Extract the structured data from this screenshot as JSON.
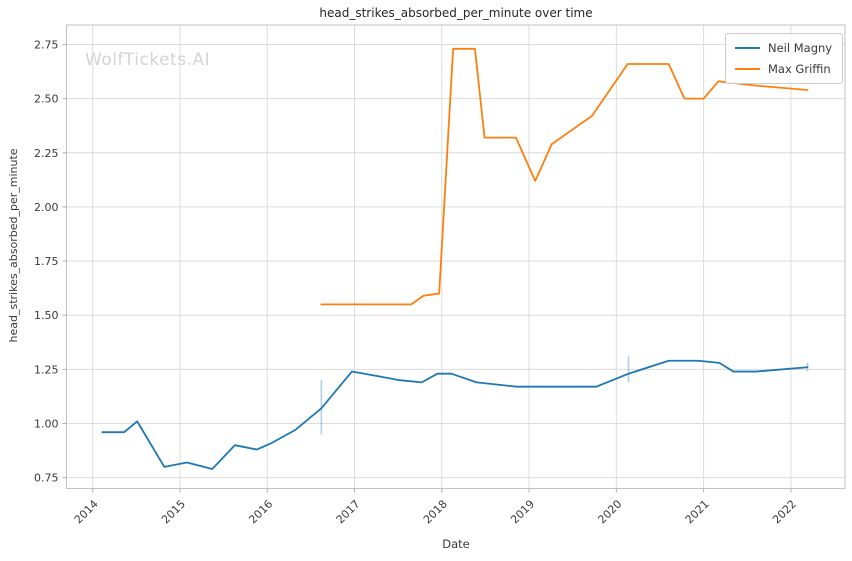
{
  "watermark": "WolfTickets.AI",
  "chart_data": {
    "type": "line",
    "title": "head_strikes_absorbed_per_minute over time",
    "xlabel": "Date",
    "ylabel": "head_strikes_absorbed_per_minute",
    "xlim": [
      2013.7,
      2022.62
    ],
    "ylim": [
      0.7,
      2.84
    ],
    "x_ticks": [
      2014,
      2015,
      2016,
      2017,
      2018,
      2019,
      2020,
      2021,
      2022
    ],
    "y_ticks": [
      "0.75",
      "1.00",
      "1.25",
      "1.50",
      "1.75",
      "2.00",
      "2.25",
      "2.50",
      "2.75"
    ],
    "grid": true,
    "legend_position": "upper right",
    "colors": {
      "grid": "#dcdcdc",
      "spine": "#c2c2c2",
      "tick": "#b0b0b0",
      "text": "#3a3a3a",
      "error_bar": "rgba(31,119,180,0.35)"
    },
    "series": [
      {
        "name": "Neil Magny",
        "color": "#1f77b4",
        "points": [
          [
            2014.11,
            0.96
          ],
          [
            2014.36,
            0.96
          ],
          [
            2014.51,
            1.01
          ],
          [
            2014.82,
            0.8
          ],
          [
            2015.08,
            0.82
          ],
          [
            2015.37,
            0.79
          ],
          [
            2015.63,
            0.9
          ],
          [
            2015.88,
            0.88
          ],
          [
            2016.05,
            0.91
          ],
          [
            2016.32,
            0.97
          ],
          [
            2016.62,
            1.07
          ],
          [
            2016.97,
            1.24
          ],
          [
            2017.25,
            1.22
          ],
          [
            2017.52,
            1.2
          ],
          [
            2017.77,
            1.19
          ],
          [
            2017.95,
            1.23
          ],
          [
            2018.11,
            1.23
          ],
          [
            2018.4,
            1.19
          ],
          [
            2018.86,
            1.17
          ],
          [
            2019.77,
            1.17
          ],
          [
            2020.14,
            1.23
          ],
          [
            2020.6,
            1.29
          ],
          [
            2020.94,
            1.29
          ],
          [
            2021.18,
            1.28
          ],
          [
            2021.34,
            1.24
          ],
          [
            2021.6,
            1.24
          ],
          [
            2022.19,
            1.26
          ]
        ],
        "error_bars": [
          {
            "x": 2016.62,
            "low": 0.95,
            "high": 1.2
          },
          {
            "x": 2020.14,
            "low": 1.19,
            "high": 1.31
          },
          {
            "x": 2022.19,
            "low": 1.24,
            "high": 1.28
          }
        ]
      },
      {
        "name": "Max Griffin",
        "color": "#ff7f0e",
        "points": [
          [
            2016.62,
            1.55
          ],
          [
            2017.65,
            1.55
          ],
          [
            2017.79,
            1.59
          ],
          [
            2017.97,
            1.6
          ],
          [
            2018.13,
            2.73
          ],
          [
            2018.38,
            2.73
          ],
          [
            2018.49,
            2.32
          ],
          [
            2018.85,
            2.32
          ],
          [
            2019.07,
            2.12
          ],
          [
            2019.26,
            2.29
          ],
          [
            2019.72,
            2.42
          ],
          [
            2020.13,
            2.66
          ],
          [
            2020.6,
            2.66
          ],
          [
            2020.78,
            2.5
          ],
          [
            2021.0,
            2.5
          ],
          [
            2021.17,
            2.58
          ],
          [
            2021.6,
            2.56
          ],
          [
            2022.19,
            2.54
          ]
        ],
        "error_bars": []
      }
    ]
  }
}
